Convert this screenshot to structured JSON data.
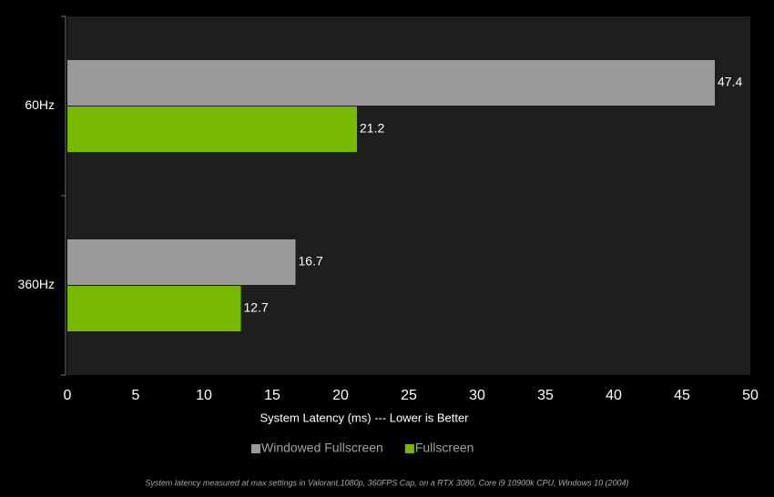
{
  "chart_data": {
    "type": "bar",
    "orientation": "horizontal",
    "categories": [
      "60Hz",
      "360Hz"
    ],
    "series": [
      {
        "name": "Windowed Fullscreen",
        "color": "#9a9a9a",
        "values": [
          47.4,
          16.7
        ]
      },
      {
        "name": "Fullscreen",
        "color": "#76b900",
        "values": [
          21.2,
          12.7
        ]
      }
    ],
    "xlim": [
      0,
      50
    ],
    "xticks": [
      0,
      5,
      10,
      15,
      20,
      25,
      30,
      35,
      40,
      45,
      50
    ],
    "xlabel": "System Latency (ms) --- Lower is Better",
    "legend": "bottom",
    "footnote": "System latency measured at max settings in Valorant,1080p, 360FPS Cap, on a RTX 3080, Core i9 10900k CPU, Windows 10 (2004)"
  }
}
